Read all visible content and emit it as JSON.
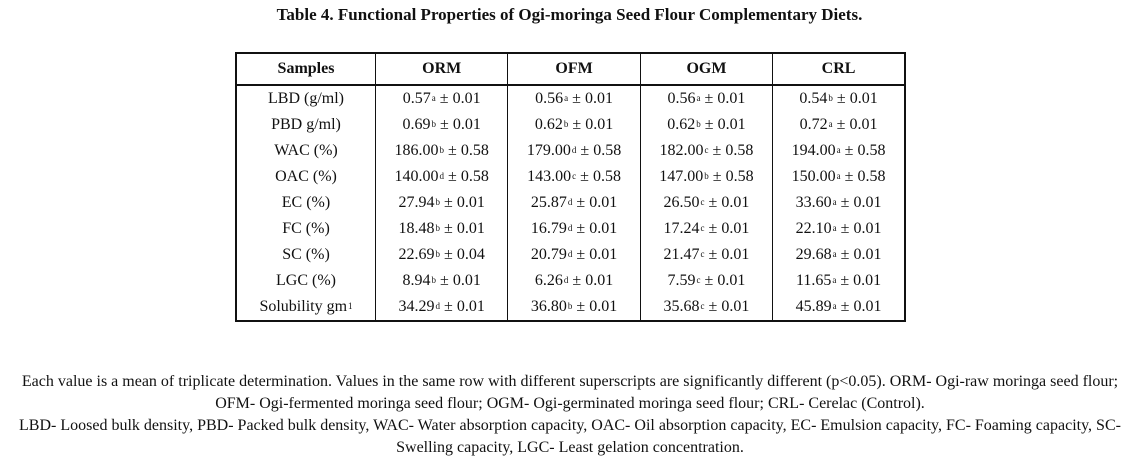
{
  "title": "Table 4. Functional Properties of  Ogi-moringa Seed Flour Complementary Diets.",
  "table": {
    "headers": [
      "Samples",
      "ORM",
      "OFM",
      "OGM",
      "CRL"
    ],
    "rows": [
      {
        "sample": "LBD (g/ml)",
        "sup": "",
        "cells": [
          {
            "v": "0.57",
            "s": "a",
            "e": " ± 0.01"
          },
          {
            "v": "0.56",
            "s": "a",
            "e": " ± 0.01"
          },
          {
            "v": "0.56",
            "s": "a",
            "e": " ± 0.01"
          },
          {
            "v": "0.54",
            "s": "b",
            "e": " ± 0.01"
          }
        ]
      },
      {
        "sample": "PBD g/ml)",
        "sup": "",
        "cells": [
          {
            "v": "0.69",
            "s": "b",
            "e": " ± 0.01"
          },
          {
            "v": "0.62",
            "s": "b",
            "e": " ± 0.01"
          },
          {
            "v": "0.62",
            "s": "b",
            "e": " ± 0.01"
          },
          {
            "v": "0.72",
            "s": "a",
            "e": " ± 0.01"
          }
        ]
      },
      {
        "sample": "WAC (%)",
        "sup": "",
        "cells": [
          {
            "v": "186.00",
            "s": "b",
            "e": " ± 0.58"
          },
          {
            "v": "179.00",
            "s": "d",
            "e": " ± 0.58"
          },
          {
            "v": "182.00",
            "s": "c",
            "e": " ± 0.58"
          },
          {
            "v": "194.00",
            "s": "a",
            "e": " ± 0.58"
          }
        ]
      },
      {
        "sample": "OAC (%)",
        "sup": "",
        "cells": [
          {
            "v": "140.00",
            "s": "d",
            "e": " ± 0.58"
          },
          {
            "v": "143.00",
            "s": "c",
            "e": " ± 0.58"
          },
          {
            "v": "147.00",
            "s": "b",
            "e": " ± 0.58"
          },
          {
            "v": "150.00",
            "s": "a",
            "e": " ± 0.58"
          }
        ]
      },
      {
        "sample": "EC (%)",
        "sup": "",
        "cells": [
          {
            "v": "27.94",
            "s": "b",
            "e": " ± 0.01"
          },
          {
            "v": "25.87",
            "s": "d",
            "e": " ± 0.01"
          },
          {
            "v": "26.50",
            "s": "c",
            "e": " ± 0.01"
          },
          {
            "v": "33.60",
            "s": "a",
            "e": " ± 0.01"
          }
        ]
      },
      {
        "sample": "FC (%)",
        "sup": "",
        "cells": [
          {
            "v": "18.48",
            "s": "b",
            "e": " ± 0.01"
          },
          {
            "v": "16.79",
            "s": "d",
            "e": " ± 0.01"
          },
          {
            "v": "17.24",
            "s": "c",
            "e": " ± 0.01"
          },
          {
            "v": "22.10",
            "s": "a",
            "e": " ± 0.01"
          }
        ]
      },
      {
        "sample": "SC (%)",
        "sup": "",
        "cells": [
          {
            "v": "22.69",
            "s": "b",
            "e": " ± 0.04"
          },
          {
            "v": "20.79",
            "s": "d",
            "e": " ± 0.01"
          },
          {
            "v": "21.47",
            "s": "c",
            "e": " ± 0.01"
          },
          {
            "v": "29.68",
            "s": "a",
            "e": " ± 0.01"
          }
        ]
      },
      {
        "sample": "LGC (%)",
        "sup": "",
        "cells": [
          {
            "v": "8.94",
            "s": "b",
            "e": " ± 0.01"
          },
          {
            "v": "6.26",
            "s": "d",
            "e": " ± 0.01"
          },
          {
            "v": "7.59",
            "s": "c",
            "e": " ± 0.01"
          },
          {
            "v": "11.65",
            "s": "a",
            "e": " ± 0.01"
          }
        ]
      },
      {
        "sample": "Solubility gm",
        "sup": "1",
        "cells": [
          {
            "v": "34.29",
            "s": "d",
            "e": " ± 0.01"
          },
          {
            "v": "36.80",
            "s": "b",
            "e": " ± 0.01"
          },
          {
            "v": "35.68",
            "s": "c",
            "e": " ± 0.01"
          },
          {
            "v": "45.89",
            "s": "a",
            "e": " ± 0.01"
          }
        ]
      }
    ]
  },
  "notes": [
    "Each value is a mean of triplicate determination. Values in the same row with different superscripts are significantly different (p<0.05). ORM- Ogi-raw moringa seed flour; OFM- Ogi-fermented moringa seed flour; OGM- Ogi-germinated moringa seed flour; CRL- Cerelac (Control).",
    "LBD- Loosed bulk density, PBD- Packed bulk density, WAC- Water absorption capacity, OAC- Oil absorption capacity, EC- Emulsion capacity, FC- Foaming capacity, SC- Swelling capacity, LGC- Least gelation concentration."
  ]
}
